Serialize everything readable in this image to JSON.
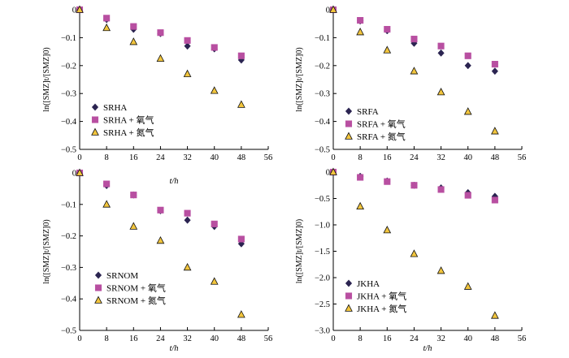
{
  "colors": {
    "s1": "#2b2451",
    "s2": "#b84fa1",
    "s3": "#f2c53d"
  },
  "chart_data": [
    {
      "type": "scatter",
      "ylabel": "ln([SMZ]t/[SMZ]0)",
      "xlabel": "t/h",
      "xlim": [
        0,
        56
      ],
      "xticks": [
        0,
        8,
        16,
        24,
        32,
        40,
        48,
        56
      ],
      "ylim": [
        -0.5,
        0
      ],
      "yticks": [
        "0",
        "−0.1",
        "−0.2",
        "−0.3",
        "−0.4",
        "−0.5"
      ],
      "legend_position": "lower-left",
      "series": [
        {
          "name": "SRHA",
          "marker": "diamond",
          "x": [
            0,
            8,
            16,
            24,
            32,
            40,
            48
          ],
          "y": [
            0,
            -0.035,
            -0.07,
            -0.085,
            -0.13,
            -0.14,
            -0.18
          ]
        },
        {
          "name": "SRHA + 氧气",
          "marker": "square",
          "x": [
            0,
            8,
            16,
            24,
            32,
            40,
            48
          ],
          "y": [
            0,
            -0.03,
            -0.06,
            -0.082,
            -0.11,
            -0.135,
            -0.165
          ]
        },
        {
          "name": "SRHA + 氮气",
          "marker": "triangle",
          "x": [
            0,
            8,
            16,
            24,
            32,
            40,
            48
          ],
          "y": [
            0,
            -0.065,
            -0.115,
            -0.175,
            -0.23,
            -0.29,
            -0.34
          ]
        }
      ]
    },
    {
      "type": "scatter",
      "ylabel": "ln([SMZ]t/[SMZ]0)",
      "xlabel": "",
      "xlim": [
        0,
        56
      ],
      "xticks": [
        0,
        8,
        16,
        24,
        32,
        40,
        48,
        56
      ],
      "ylim": [
        -0.5,
        0
      ],
      "yticks": [
        "0",
        "−0.1",
        "−0.2",
        "−0.3",
        "−0.4",
        "−0.5"
      ],
      "legend_position": "lower-left",
      "series": [
        {
          "name": "SRFA",
          "marker": "diamond",
          "x": [
            0,
            8,
            16,
            24,
            32,
            40,
            48
          ],
          "y": [
            0,
            -0.04,
            -0.075,
            -0.12,
            -0.155,
            -0.2,
            -0.22
          ]
        },
        {
          "name": "SRFA + 氧气",
          "marker": "square",
          "x": [
            0,
            8,
            16,
            24,
            32,
            40,
            48
          ],
          "y": [
            0,
            -0.038,
            -0.07,
            -0.105,
            -0.13,
            -0.165,
            -0.195
          ]
        },
        {
          "name": "SRFA + 氮气",
          "marker": "triangle",
          "x": [
            0,
            8,
            16,
            24,
            32,
            40,
            48
          ],
          "y": [
            0,
            -0.08,
            -0.145,
            -0.22,
            -0.295,
            -0.365,
            -0.435
          ]
        }
      ]
    },
    {
      "type": "scatter",
      "ylabel": "ln([SMZ]t/[SMZ]0)",
      "xlabel": "t/h",
      "xlim": [
        0,
        56
      ],
      "xticks": [
        0,
        8,
        16,
        24,
        32,
        40,
        48,
        56
      ],
      "ylim": [
        -0.5,
        0
      ],
      "yticks": [
        "0",
        "−0.1",
        "−0.2",
        "−0.3",
        "−0.4",
        "−0.5"
      ],
      "legend_position": "lower-left",
      "series": [
        {
          "name": "SRNOM",
          "marker": "diamond",
          "x": [
            0,
            8,
            16,
            24,
            32,
            40,
            48
          ],
          "y": [
            0,
            -0.04,
            -0.07,
            -0.12,
            -0.15,
            -0.17,
            -0.225
          ]
        },
        {
          "name": "SRNOM + 氧气",
          "marker": "square",
          "x": [
            0,
            8,
            16,
            24,
            32,
            40,
            48
          ],
          "y": [
            0,
            -0.035,
            -0.07,
            -0.118,
            -0.128,
            -0.162,
            -0.21
          ]
        },
        {
          "name": "SRNOM + 氮气",
          "marker": "triangle",
          "x": [
            0,
            8,
            16,
            24,
            32,
            40,
            48
          ],
          "y": [
            0,
            -0.1,
            -0.17,
            -0.215,
            -0.3,
            -0.345,
            -0.45
          ]
        }
      ]
    },
    {
      "type": "scatter",
      "ylabel": "ln([SMZ]t/[SMZ]0)",
      "xlabel": "t/h",
      "xlim": [
        0,
        56
      ],
      "xticks": [
        0,
        8,
        16,
        24,
        32,
        40,
        48,
        56
      ],
      "ylim": [
        -3.0,
        0
      ],
      "yticks": [
        "0",
        "−0.5",
        "−1.0",
        "−1.5",
        "−2.0",
        "−2.5",
        "−3.0"
      ],
      "legend_position": "lower-left",
      "series": [
        {
          "name": "JKHA",
          "marker": "diamond",
          "x": [
            0,
            8,
            16,
            24,
            32,
            40,
            48
          ],
          "y": [
            0,
            -0.08,
            -0.17,
            -0.25,
            -0.3,
            -0.39,
            -0.46
          ]
        },
        {
          "name": "JKHA + 氧气",
          "marker": "square",
          "x": [
            0,
            8,
            16,
            24,
            32,
            40,
            48
          ],
          "y": [
            0,
            -0.1,
            -0.18,
            -0.25,
            -0.33,
            -0.44,
            -0.53
          ]
        },
        {
          "name": "JKHA + 氮气",
          "marker": "triangle",
          "x": [
            0,
            8,
            16,
            24,
            32,
            40,
            48
          ],
          "y": [
            0,
            -0.65,
            -1.1,
            -1.55,
            -1.87,
            -2.17,
            -2.72
          ]
        }
      ]
    }
  ]
}
